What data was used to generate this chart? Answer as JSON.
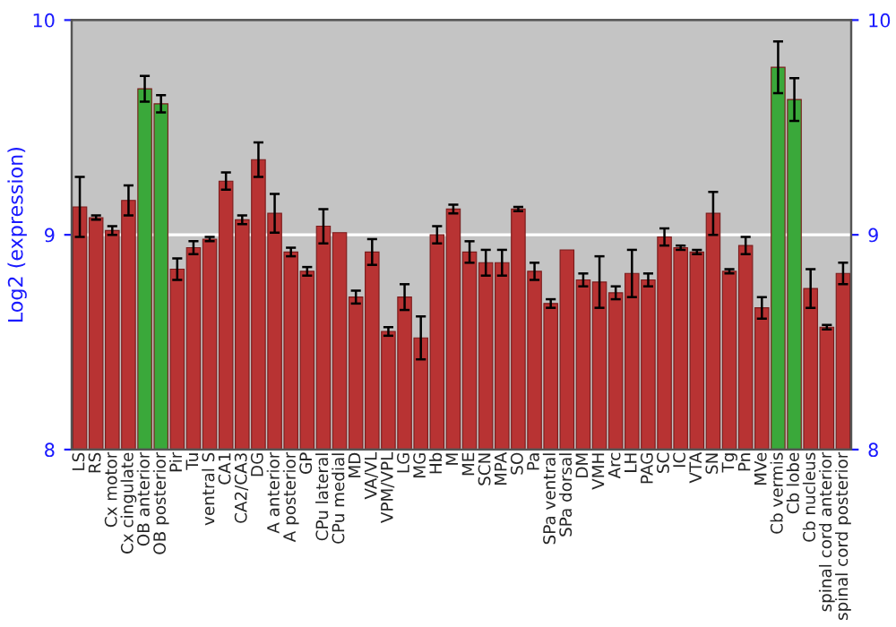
{
  "chart_data": {
    "type": "bar",
    "ylabel": "Log2 (expression)",
    "categories": [
      "LS",
      "RS",
      "Cx motor",
      "Cx cingulate",
      "OB anterior",
      "OB posterior",
      "Pir",
      "Tu",
      "ventral S",
      "CA1",
      "CA2/CA3",
      "DG",
      "A anterior",
      "A posterior",
      "GP",
      "CPu lateral",
      "CPu medial",
      "MD",
      "VA/VL",
      "VPM/VPL",
      "LG",
      "MG",
      "Hb",
      "M",
      "ME",
      "SCN",
      "MPA",
      "SO",
      "Pa",
      "SPa ventral",
      "SPa dorsal",
      "DM",
      "VMH",
      "Arc",
      "LH",
      "PAG",
      "SC",
      "IC",
      "VTA",
      "SN",
      "Tg",
      "Pn",
      "MVe",
      "Cb vermis",
      "Cb lobe",
      "Cb nucleus",
      "spinal cord anterior",
      "spinal cord posterior"
    ],
    "values": [
      9.13,
      9.08,
      9.02,
      9.16,
      9.68,
      9.61,
      8.84,
      8.94,
      8.98,
      9.25,
      9.07,
      9.35,
      9.1,
      8.92,
      8.83,
      9.04,
      9.01,
      8.71,
      8.92,
      8.55,
      8.71,
      8.52,
      9.0,
      9.12,
      8.92,
      8.87,
      8.87,
      9.12,
      8.83,
      8.68,
      8.93,
      8.79,
      8.78,
      8.73,
      8.82,
      8.79,
      8.99,
      8.94,
      8.92,
      9.1,
      8.83,
      8.95,
      8.66,
      9.78,
      9.63,
      8.75,
      8.57,
      8.82
    ],
    "errors": [
      0.14,
      0.01,
      0.02,
      0.07,
      0.06,
      0.04,
      0.05,
      0.03,
      0.01,
      0.04,
      0.02,
      0.08,
      0.09,
      0.02,
      0.02,
      0.08,
      null,
      0.03,
      0.06,
      0.02,
      0.06,
      0.1,
      0.04,
      0.02,
      0.05,
      0.06,
      0.06,
      0.01,
      0.04,
      0.02,
      null,
      0.03,
      0.12,
      0.03,
      0.11,
      0.03,
      0.04,
      0.01,
      0.01,
      0.1,
      0.01,
      0.04,
      0.05,
      0.12,
      0.1,
      0.09,
      0.01,
      0.05
    ],
    "colors": [
      "#b83333",
      "#b83333",
      "#b83333",
      "#b83333",
      "#3aa83a",
      "#3aa83a",
      "#b83333",
      "#b83333",
      "#b83333",
      "#b83333",
      "#b83333",
      "#b83333",
      "#b83333",
      "#b83333",
      "#b83333",
      "#b83333",
      "#b83333",
      "#b83333",
      "#b83333",
      "#b83333",
      "#b83333",
      "#b83333",
      "#b83333",
      "#b83333",
      "#b83333",
      "#b83333",
      "#b83333",
      "#b83333",
      "#b83333",
      "#b83333",
      "#b83333",
      "#b83333",
      "#b83333",
      "#b83333",
      "#b83333",
      "#b83333",
      "#b83333",
      "#b83333",
      "#b83333",
      "#b83333",
      "#b83333",
      "#b83333",
      "#b83333",
      "#3aa83a",
      "#3aa83a",
      "#b83333",
      "#b83333",
      "#b83333"
    ],
    "ylim": [
      8,
      10
    ],
    "yticks": [
      8,
      9,
      10
    ],
    "y2lim": [
      8,
      10
    ],
    "y2ticks": [
      8,
      9,
      10
    ],
    "grid": "y"
  }
}
